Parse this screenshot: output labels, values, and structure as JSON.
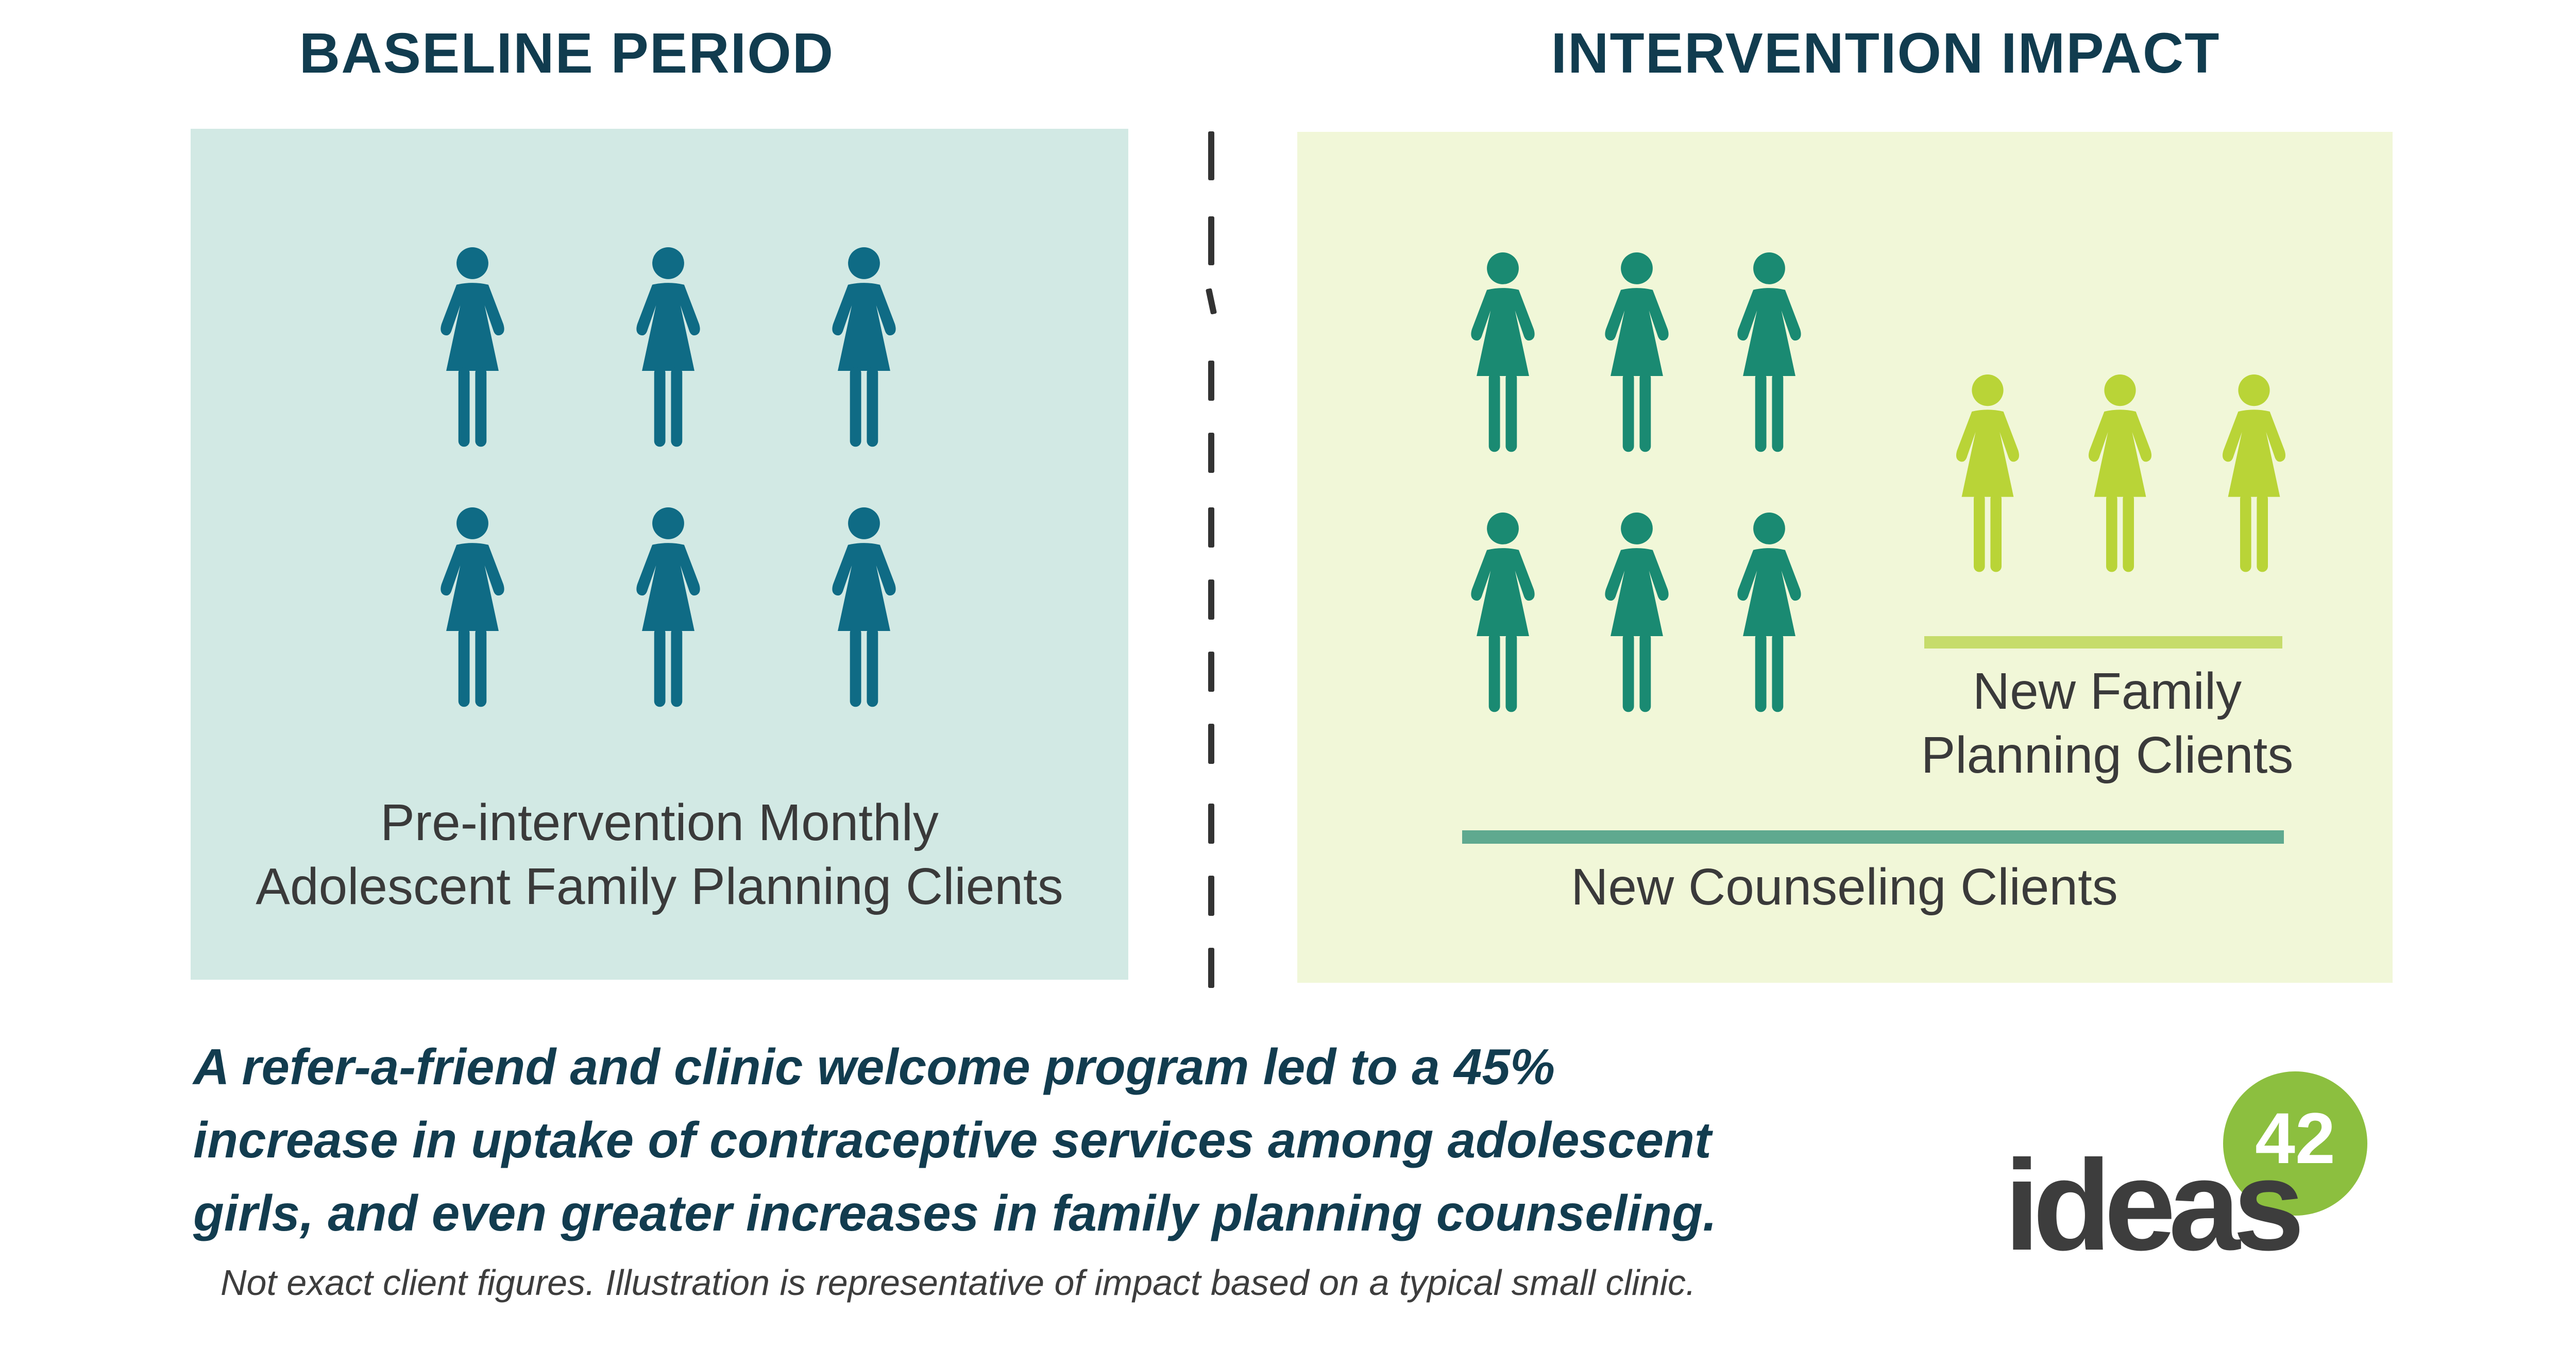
{
  "headings": {
    "baseline": "BASELINE PERIOD",
    "intervention": "INTERVENTION IMPACT"
  },
  "baseline": {
    "caption_line1": "Pre-intervention Monthly",
    "caption_line2": "Adolescent Family Planning Clients",
    "figure_count": 6,
    "figure_color": "#0f6b85"
  },
  "intervention": {
    "counseling_figure_count": 6,
    "counseling_figure_color": "#1a8a72",
    "family_planning_figure_count": 3,
    "family_planning_figure_color": "#b9d437",
    "family_planning_caption_line1": "New Family",
    "family_planning_caption_line2": "Planning Clients",
    "counseling_caption": "New Counseling Clients"
  },
  "summary": {
    "line1": "A refer-a-friend and clinic welcome program led to a 45%",
    "line2": "increase in uptake of contraceptive services among adolescent",
    "line3": "girls, and even greater increases in family planning counseling."
  },
  "footnote": "Not exact client figures. Illustration is representative of impact based on a typical small clinic.",
  "logo": {
    "word": "ideas",
    "number": "42"
  },
  "icons": {
    "person": "woman-figure-icon"
  }
}
